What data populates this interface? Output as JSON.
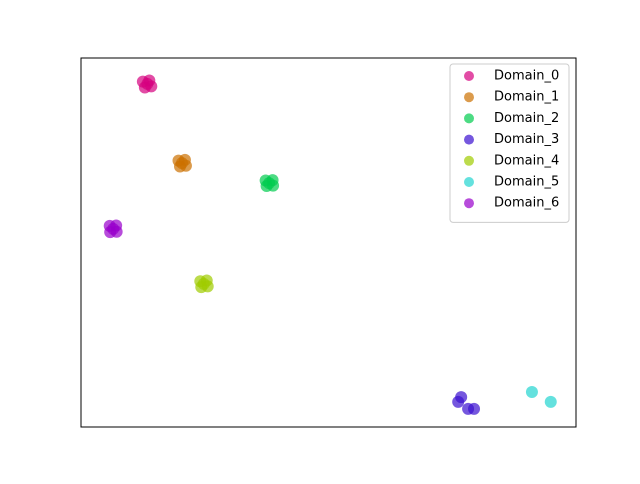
{
  "chart_data": {
    "type": "scatter",
    "xlim": [
      0,
      100
    ],
    "ylim": [
      0,
      100
    ],
    "legend": "upper right",
    "alpha": 0.7,
    "series": [
      {
        "name": "Domain_0",
        "color": "#d6007f",
        "x": [
          12.5,
          13.8,
          14.2,
          12.9,
          13.4
        ],
        "y": [
          93.6,
          93.9,
          92.3,
          92.0,
          93.0
        ]
      },
      {
        "name": "Domain_1",
        "color": "#cc7000",
        "x": [
          19.7,
          21.0,
          21.2,
          20.0,
          20.4
        ],
        "y": [
          72.2,
          72.4,
          70.8,
          70.6,
          71.5
        ]
      },
      {
        "name": "Domain_2",
        "color": "#00cc4e",
        "x": [
          37.3,
          38.7,
          38.8,
          37.5,
          38.0
        ],
        "y": [
          66.8,
          66.9,
          65.4,
          65.3,
          66.1
        ]
      },
      {
        "name": "Domain_3",
        "color": "#3b10d0",
        "x": [
          76.8,
          76.2,
          78.2,
          79.4
        ],
        "y": [
          8.1,
          6.8,
          4.9,
          4.9
        ]
      },
      {
        "name": "Domain_4",
        "color": "#a0cc00",
        "x": [
          24.1,
          25.4,
          25.6,
          24.3,
          24.8
        ],
        "y": [
          39.5,
          39.7,
          38.1,
          37.9,
          38.8
        ]
      },
      {
        "name": "Domain_5",
        "color": "#22d4d0",
        "x": [
          91.1,
          94.9
        ],
        "y": [
          9.5,
          6.8
        ]
      },
      {
        "name": "Domain_6",
        "color": "#9900cc",
        "x": [
          5.8,
          7.1,
          7.2,
          5.9,
          6.5
        ],
        "y": [
          54.5,
          54.6,
          52.9,
          52.8,
          53.7
        ]
      }
    ]
  }
}
